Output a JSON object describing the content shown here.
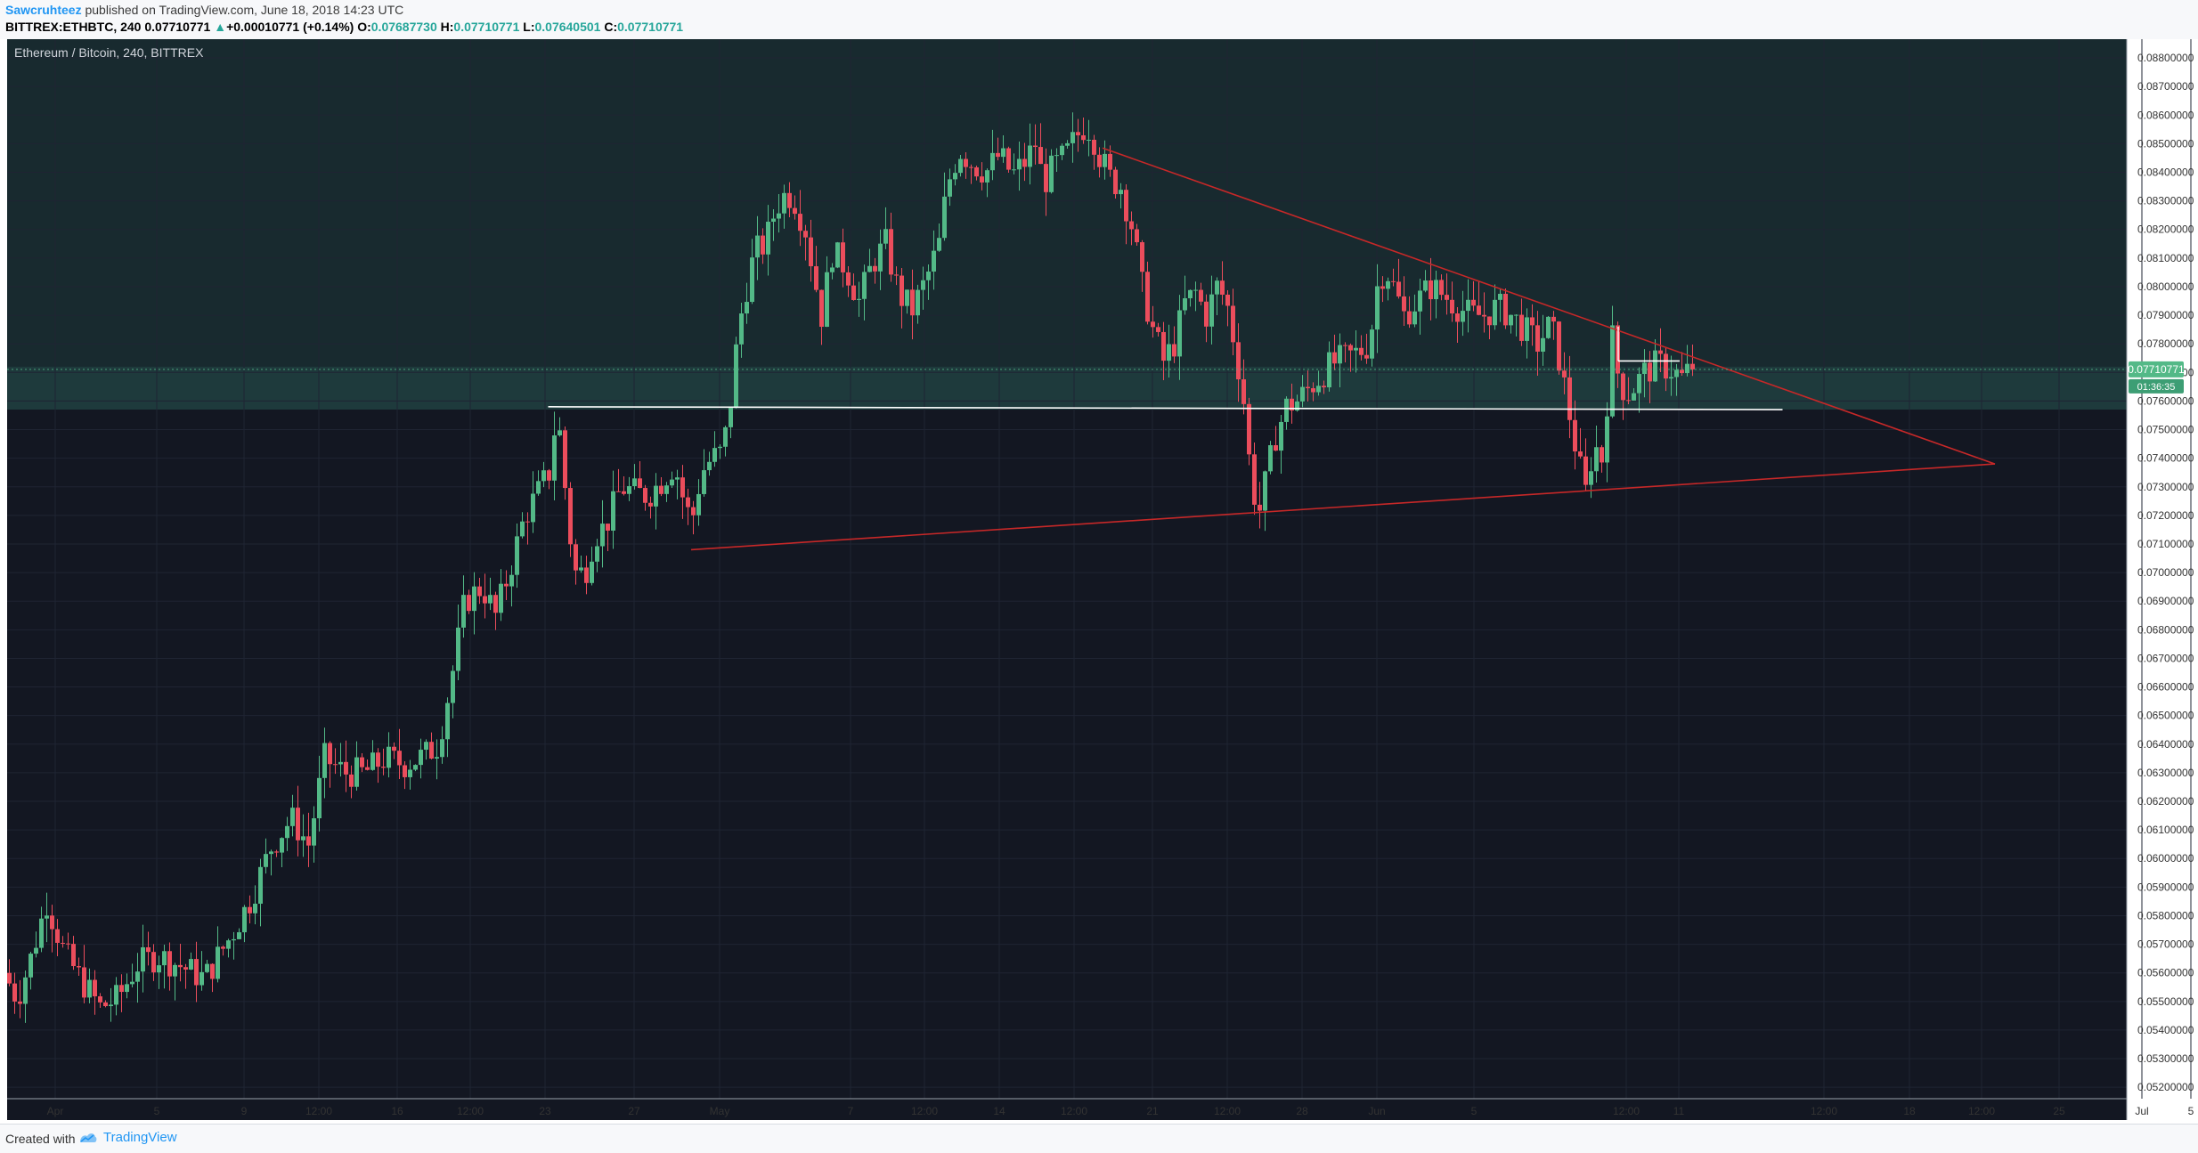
{
  "header": {
    "author": "Sawcruhteez",
    "published_text": " published on TradingView.com, June 18, 2018 14:23 UTC",
    "symbol": "BITTREX:ETHBTC, 240",
    "last_price": "0.07710771",
    "change_arrow": "▲",
    "change": "+0.00010771 (+0.14%)",
    "o_label": "O:",
    "o_value": "0.07687730",
    "h_label": "H:",
    "h_value": "0.07710771",
    "l_label": "L:",
    "l_value": "0.07640501",
    "c_label": "C:",
    "c_value": "0.07710771"
  },
  "chart_title": "Ethereum / Bitcoin, 240, BITTREX",
  "price_tag": "0.07710771",
  "countdown_tag": "01:36:35",
  "footer": {
    "created_with": "Created with",
    "brand": "TradingView"
  },
  "colors": {
    "background": "#131722",
    "up": "#53b987",
    "down": "#eb4d5c",
    "trendline": "#c62828",
    "support": "#ffffff",
    "highlight_band": "#1d3a3a",
    "grid": "#1f2433",
    "axis_text": "#333333"
  },
  "chart_data": {
    "type": "candlestick",
    "title": "Ethereum / Bitcoin, 240, BITTREX",
    "x_ticks": [
      "Apr",
      "5",
      "9",
      "12:00",
      "16",
      "12:00",
      "23",
      "27",
      "May",
      "7",
      "12:00",
      "14",
      "12:00",
      "21",
      "12:00",
      "28",
      "Jun",
      "5",
      "12:00",
      "11",
      "12:00",
      "18",
      "12:00",
      "25",
      "Jul",
      "5"
    ],
    "y_ticks": [
      "0.08800000",
      "0.08700000",
      "0.08600000",
      "0.08500000",
      "0.08400000",
      "0.08300000",
      "0.08200000",
      "0.08100000",
      "0.08000000",
      "0.07900000",
      "0.07800000",
      "0.07700000",
      "0.07600000",
      "0.07500000",
      "0.07400000",
      "0.07300000",
      "0.07200000",
      "0.07100000",
      "0.07000000",
      "0.06900000",
      "0.06800000",
      "0.06700000",
      "0.06600000",
      "0.06500000",
      "0.06400000",
      "0.06300000",
      "0.06200000",
      "0.06100000",
      "0.06000000",
      "0.05900000",
      "0.05800000",
      "0.05700000",
      "0.05600000",
      "0.05500000",
      "0.05400000",
      "0.05300000",
      "0.05200000"
    ],
    "ylim": [
      0.0516,
      0.0885
    ],
    "last_close": 0.07710771,
    "anchors": [
      [
        0,
        0.056
      ],
      [
        10,
        0.0551
      ],
      [
        20,
        0.0565
      ],
      [
        32,
        0.0585
      ],
      [
        45,
        0.0567
      ],
      [
        60,
        0.0556
      ],
      [
        72,
        0.0548
      ],
      [
        85,
        0.0551
      ],
      [
        100,
        0.0563
      ],
      [
        115,
        0.0566
      ],
      [
        130,
        0.0563
      ],
      [
        150,
        0.0558
      ],
      [
        170,
        0.0573
      ],
      [
        185,
        0.0586
      ],
      [
        200,
        0.0604
      ],
      [
        215,
        0.0614
      ],
      [
        228,
        0.0605
      ],
      [
        240,
        0.0635
      ],
      [
        255,
        0.063
      ],
      [
        270,
        0.063
      ],
      [
        285,
        0.0635
      ],
      [
        300,
        0.0633
      ],
      [
        315,
        0.0636
      ],
      [
        325,
        0.064
      ],
      [
        335,
        0.0663
      ],
      [
        345,
        0.069
      ],
      [
        358,
        0.0695
      ],
      [
        368,
        0.0685
      ],
      [
        378,
        0.07
      ],
      [
        390,
        0.072
      ],
      [
        400,
        0.0728
      ],
      [
        408,
        0.0735
      ],
      [
        414,
        0.0757
      ],
      [
        418,
        0.074
      ],
      [
        423,
        0.0715
      ],
      [
        428,
        0.07
      ],
      [
        435,
        0.07
      ],
      [
        442,
        0.0713
      ],
      [
        450,
        0.0716
      ],
      [
        462,
        0.073
      ],
      [
        472,
        0.0728
      ],
      [
        482,
        0.0727
      ],
      [
        492,
        0.0732
      ],
      [
        502,
        0.0738
      ],
      [
        510,
        0.0723
      ],
      [
        515,
        0.0718
      ],
      [
        522,
        0.0735
      ],
      [
        530,
        0.074
      ],
      [
        538,
        0.0742
      ],
      [
        544,
        0.076
      ],
      [
        550,
        0.0786
      ],
      [
        556,
        0.08
      ],
      [
        562,
        0.0812
      ],
      [
        570,
        0.0815
      ],
      [
        578,
        0.0828
      ],
      [
        586,
        0.0833
      ],
      [
        592,
        0.083
      ],
      [
        600,
        0.082
      ],
      [
        606,
        0.0805
      ],
      [
        612,
        0.079
      ],
      [
        620,
        0.0812
      ],
      [
        630,
        0.0807
      ],
      [
        640,
        0.0795
      ],
      [
        650,
        0.0808
      ],
      [
        660,
        0.0815
      ],
      [
        670,
        0.0797
      ],
      [
        680,
        0.0792
      ],
      [
        690,
        0.0802
      ],
      [
        700,
        0.0815
      ],
      [
        706,
        0.0835
      ],
      [
        715,
        0.0848
      ],
      [
        725,
        0.0843
      ],
      [
        735,
        0.084
      ],
      [
        745,
        0.0846
      ],
      [
        755,
        0.0839
      ],
      [
        765,
        0.0844
      ],
      [
        772,
        0.085
      ],
      [
        778,
        0.0836
      ],
      [
        786,
        0.0842
      ],
      [
        795,
        0.0846
      ],
      [
        802,
        0.0852
      ],
      [
        810,
        0.0857
      ],
      [
        815,
        0.0853
      ],
      [
        820,
        0.0846
      ],
      [
        828,
        0.0838
      ],
      [
        836,
        0.0835
      ],
      [
        845,
        0.082
      ],
      [
        852,
        0.08
      ],
      [
        860,
        0.0785
      ],
      [
        868,
        0.0774
      ],
      [
        876,
        0.078
      ],
      [
        884,
        0.0794
      ],
      [
        892,
        0.0798
      ],
      [
        900,
        0.079
      ],
      [
        908,
        0.08
      ],
      [
        915,
        0.0795
      ],
      [
        922,
        0.0778
      ],
      [
        928,
        0.076
      ],
      [
        934,
        0.073
      ],
      [
        940,
        0.0722
      ],
      [
        946,
        0.0735
      ],
      [
        952,
        0.0748
      ],
      [
        960,
        0.0758
      ],
      [
        968,
        0.076
      ],
      [
        976,
        0.0764
      ],
      [
        984,
        0.0768
      ],
      [
        994,
        0.0773
      ],
      [
        1004,
        0.0775
      ],
      [
        1014,
        0.0777
      ],
      [
        1022,
        0.078
      ],
      [
        1028,
        0.08
      ],
      [
        1034,
        0.0807
      ],
      [
        1040,
        0.08
      ],
      [
        1048,
        0.079
      ],
      [
        1058,
        0.0795
      ],
      [
        1068,
        0.08
      ],
      [
        1078,
        0.0797
      ],
      [
        1088,
        0.0793
      ],
      [
        1098,
        0.079
      ],
      [
        1108,
        0.079
      ],
      [
        1118,
        0.0793
      ],
      [
        1128,
        0.079
      ],
      [
        1138,
        0.0785
      ],
      [
        1148,
        0.078
      ],
      [
        1158,
        0.0787
      ],
      [
        1165,
        0.0773
      ],
      [
        1172,
        0.0755
      ],
      [
        1178,
        0.074
      ],
      [
        1184,
        0.0728
      ],
      [
        1190,
        0.0745
      ],
      [
        1196,
        0.074
      ],
      [
        1200,
        0.076
      ],
      [
        1204,
        0.0782
      ],
      [
        1208,
        0.077
      ],
      [
        1214,
        0.0762
      ],
      [
        1220,
        0.0765
      ],
      [
        1228,
        0.077
      ],
      [
        1238,
        0.0773
      ],
      [
        1248,
        0.0771
      ],
      [
        1256,
        0.0768
      ],
      [
        1262,
        0.0771
      ]
    ],
    "lines": [
      {
        "name": "upper_trend",
        "from": [
          820,
          0.08485
        ],
        "to": [
          1488,
          0.0738
        ]
      },
      {
        "name": "lower_trend",
        "from": [
          512,
          0.0708
        ],
        "to": [
          1488,
          0.0738
        ]
      },
      {
        "name": "support",
        "from": [
          405,
          0.0758
        ],
        "to": [
          1329,
          0.0757
        ]
      },
      {
        "name": "mini_resistance",
        "from": [
          1206,
          0.0774
        ],
        "to": [
          1252,
          0.0774
        ]
      }
    ]
  }
}
